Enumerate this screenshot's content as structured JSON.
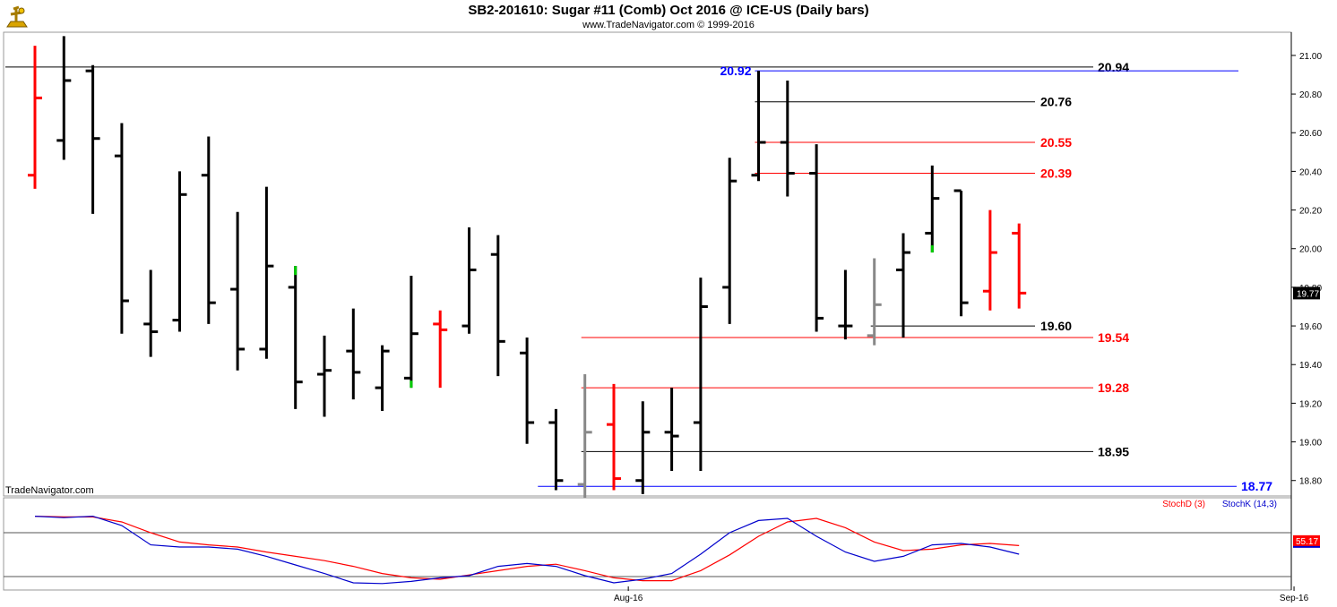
{
  "header": {
    "title": "SB2-201610:  Sugar #11 (Comb) Oct 2016 @ ICE-US  (Daily bars)",
    "subtitle": "www.TradeNavigator.com © 1999-2016",
    "logo_icon": "trade-navigator-logo-icon"
  },
  "watermark": "TradeNavigator.com",
  "colors": {
    "up": "#000000",
    "down": "#ff0000",
    "green": "#00cc00",
    "gray": "#888888",
    "blue": "#0000ff",
    "stochD": "#ff0000",
    "stochK": "#0000cc"
  },
  "chart_data": [
    {
      "type": "ohlc",
      "title": "SB2-201610:  Sugar #11 (Comb) Oct 2016 @ ICE-US  (Daily bars)",
      "ylim": [
        18.72,
        21.12
      ],
      "y_ticks": [
        "18.80",
        "19.00",
        "19.20",
        "19.40",
        "19.60",
        "19.80",
        "20.00",
        "20.20",
        "20.40",
        "20.60",
        "20.80",
        "21.00"
      ],
      "x_ticks": [
        {
          "label": "Aug-16",
          "index": 20.5
        },
        {
          "label": "Sep-16",
          "index": 43.5
        }
      ],
      "last_price": "19.77",
      "bars": [
        {
          "o": 20.38,
          "h": 21.05,
          "l": 20.31,
          "c": 20.78,
          "color": "down"
        },
        {
          "o": 20.56,
          "h": 21.1,
          "l": 20.46,
          "c": 20.87,
          "color": "up"
        },
        {
          "o": 20.92,
          "h": 20.95,
          "l": 20.18,
          "c": 20.57,
          "color": "up"
        },
        {
          "o": 20.48,
          "h": 20.65,
          "l": 19.56,
          "c": 19.73,
          "color": "up"
        },
        {
          "o": 19.61,
          "h": 19.89,
          "l": 19.44,
          "c": 19.57,
          "color": "up"
        },
        {
          "o": 19.63,
          "h": 20.4,
          "l": 19.57,
          "c": 20.28,
          "color": "up"
        },
        {
          "o": 20.38,
          "h": 20.58,
          "l": 19.61,
          "c": 19.72,
          "color": "up"
        },
        {
          "o": 19.79,
          "h": 20.19,
          "l": 19.37,
          "c": 19.48,
          "color": "up"
        },
        {
          "o": 19.48,
          "h": 20.32,
          "l": 19.43,
          "c": 19.91,
          "color": "up"
        },
        {
          "o": 19.8,
          "h": 19.91,
          "l": 19.17,
          "c": 19.31,
          "color": "up",
          "hcolor": "green"
        },
        {
          "o": 19.35,
          "h": 19.55,
          "l": 19.13,
          "c": 19.37,
          "color": "up"
        },
        {
          "o": 19.47,
          "h": 19.69,
          "l": 19.22,
          "c": 19.36,
          "color": "up"
        },
        {
          "o": 19.28,
          "h": 19.5,
          "l": 19.16,
          "c": 19.47,
          "color": "up"
        },
        {
          "o": 19.33,
          "h": 19.86,
          "l": 19.28,
          "c": 19.56,
          "color": "up",
          "lcolor": "green"
        },
        {
          "o": 19.61,
          "h": 19.68,
          "l": 19.28,
          "c": 19.58,
          "color": "down"
        },
        {
          "o": 19.6,
          "h": 20.11,
          "l": 19.56,
          "c": 19.89,
          "color": "up"
        },
        {
          "o": 19.97,
          "h": 20.07,
          "l": 19.34,
          "c": 19.52,
          "color": "up"
        },
        {
          "o": 19.46,
          "h": 19.54,
          "l": 18.99,
          "c": 19.1,
          "color": "up"
        },
        {
          "o": 19.1,
          "h": 19.17,
          "l": 18.75,
          "c": 18.8,
          "color": "up"
        },
        {
          "o": 18.78,
          "h": 19.35,
          "l": 18.71,
          "c": 19.05,
          "color": "gray"
        },
        {
          "o": 19.09,
          "h": 19.3,
          "l": 18.75,
          "c": 18.81,
          "color": "down"
        },
        {
          "o": 18.8,
          "h": 19.21,
          "l": 18.73,
          "c": 19.05,
          "color": "up"
        },
        {
          "o": 19.05,
          "h": 19.28,
          "l": 18.85,
          "c": 19.03,
          "color": "up"
        },
        {
          "o": 19.1,
          "h": 19.85,
          "l": 18.85,
          "c": 19.7,
          "color": "up"
        },
        {
          "o": 19.8,
          "h": 20.47,
          "l": 19.61,
          "c": 20.35,
          "color": "up"
        },
        {
          "o": 20.38,
          "h": 20.92,
          "l": 20.35,
          "c": 20.55,
          "color": "up"
        },
        {
          "o": 20.55,
          "h": 20.87,
          "l": 20.27,
          "c": 20.39,
          "color": "up"
        },
        {
          "o": 20.39,
          "h": 20.54,
          "l": 19.57,
          "c": 19.64,
          "color": "up"
        },
        {
          "o": 19.6,
          "h": 19.89,
          "l": 19.53,
          "c": 19.6,
          "color": "up"
        },
        {
          "o": 19.55,
          "h": 19.95,
          "l": 19.5,
          "c": 19.71,
          "color": "gray"
        },
        {
          "o": 19.89,
          "h": 20.08,
          "l": 19.54,
          "c": 19.98,
          "color": "up"
        },
        {
          "o": 20.08,
          "h": 20.43,
          "l": 19.98,
          "c": 20.26,
          "color": "up",
          "lcolor": "green"
        },
        {
          "o": 20.3,
          "h": 20.3,
          "l": 19.65,
          "c": 19.72,
          "color": "up"
        },
        {
          "o": 19.78,
          "h": 20.2,
          "l": 19.68,
          "c": 19.98,
          "color": "down"
        },
        {
          "o": 20.08,
          "h": 20.13,
          "l": 19.69,
          "c": 19.77,
          "color": "down"
        }
      ],
      "levels": [
        {
          "value": 20.94,
          "label": "20.94",
          "color": "#000000",
          "label_color": "#000000",
          "from": -1,
          "side": "right"
        },
        {
          "value": 20.92,
          "label": "20.92",
          "color": "#0000ff",
          "label_color": "#0000ff",
          "from": 25,
          "side": "left"
        },
        {
          "value": 20.76,
          "label": "20.76",
          "color": "#000000",
          "label_color": "#000000",
          "from": 25,
          "side": "mid"
        },
        {
          "value": 20.55,
          "label": "20.55",
          "color": "#ff0000",
          "label_color": "#ff0000",
          "from": 25,
          "side": "mid"
        },
        {
          "value": 20.39,
          "label": "20.39",
          "color": "#ff0000",
          "label_color": "#ff0000",
          "from": 25,
          "side": "mid"
        },
        {
          "value": 19.6,
          "label": "19.60",
          "color": "#000000",
          "label_color": "#000000",
          "from": 29,
          "side": "mid"
        },
        {
          "value": 19.54,
          "label": "19.54",
          "color": "#ff0000",
          "label_color": "#ff0000",
          "from": 19,
          "side": "right"
        },
        {
          "value": 19.28,
          "label": "19.28",
          "color": "#ff0000",
          "label_color": "#ff0000",
          "from": 19,
          "side": "right"
        },
        {
          "value": 18.95,
          "label": "18.95",
          "color": "#000000",
          "label_color": "#000000",
          "from": 19,
          "side": "right"
        },
        {
          "value": 18.77,
          "label": "18.77",
          "color": "#0000ff",
          "label_color": "#0000ff",
          "from": 17.5,
          "side": "far"
        }
      ]
    },
    {
      "type": "line",
      "title": "",
      "ylim": [
        0,
        100
      ],
      "legend": [
        "StochD (3)",
        "StochK (14,3)"
      ],
      "last_value": "55.17",
      "series": [
        {
          "name": "StochD (3)",
          "color": "#ff0000",
          "values": [
            98,
            97,
            97,
            90,
            75,
            62,
            58,
            55,
            48,
            42,
            36,
            28,
            18,
            12,
            10,
            16,
            22,
            28,
            31,
            22,
            12,
            8,
            8,
            22,
            44,
            70,
            90,
            95,
            82,
            62,
            50,
            52,
            58,
            60,
            57
          ]
        },
        {
          "name": "StochK (14,3)",
          "color": "#0000cc",
          "values": [
            98,
            96,
            98,
            85,
            58,
            55,
            55,
            52,
            42,
            30,
            18,
            5,
            4,
            7,
            12,
            15,
            28,
            32,
            28,
            15,
            5,
            10,
            18,
            45,
            75,
            92,
            95,
            70,
            48,
            35,
            42,
            58,
            60,
            55,
            45
          ]
        }
      ]
    }
  ]
}
